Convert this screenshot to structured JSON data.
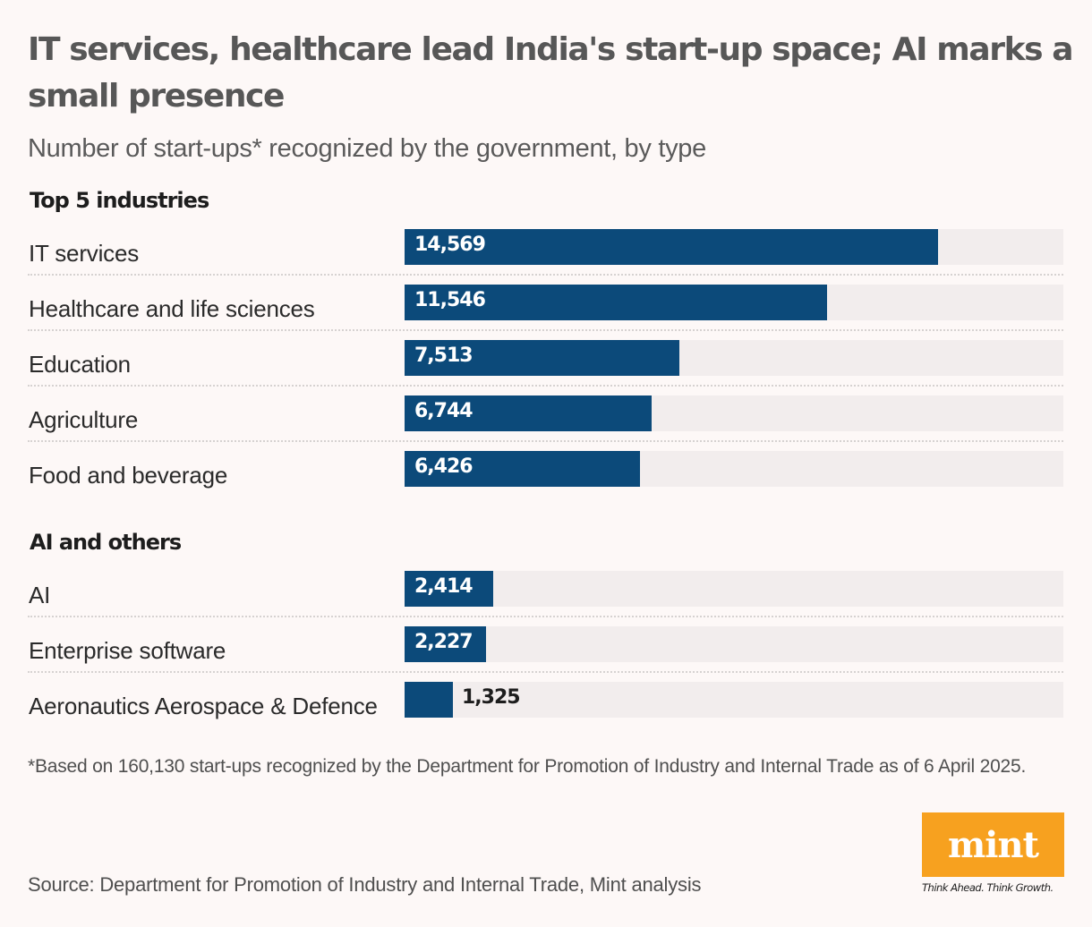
{
  "header": {
    "title": "IT services, healthcare lead India's start-up space; AI marks a small presence",
    "subtitle": "Number of start-ups* recognized by the government, by type"
  },
  "colors": {
    "background": "#fdf8f7",
    "bar": "#0c4a7a",
    "track": "#f2eded",
    "logo": "#f7a11f"
  },
  "chart_data": {
    "type": "bar",
    "orientation": "horizontal",
    "title": "IT services, healthcare lead India's start-up space; AI marks a small presence",
    "subtitle": "Number of start-ups* recognized by the government, by type",
    "xlim": [
      0,
      18000
    ],
    "grid": false,
    "legend": "none",
    "groups": [
      {
        "title": "Top 5 industries",
        "categories": [
          "IT services",
          "Healthcare and life sciences",
          "Education",
          "Agriculture",
          "Food and beverage"
        ],
        "values": [
          14569,
          11546,
          7513,
          6744,
          6426
        ],
        "labels": [
          "14,569",
          "11,546",
          "7,513",
          "6,744",
          "6,426"
        ]
      },
      {
        "title": "AI and others",
        "categories": [
          "AI",
          "Enterprise software",
          "Aeronautics Aerospace & Defence"
        ],
        "values": [
          2414,
          2227,
          1325
        ],
        "labels": [
          "2,414",
          "2,227",
          "1,325"
        ]
      }
    ]
  },
  "footer": {
    "footnote": "*Based on 160,130 start-ups recognized by the Department for Promotion of Industry and Internal Trade as of 6 April 2025.",
    "source": "Source: Department for Promotion of Industry and Internal Trade, Mint analysis",
    "logo_text": "mint",
    "tagline": "Think Ahead. Think Growth."
  }
}
